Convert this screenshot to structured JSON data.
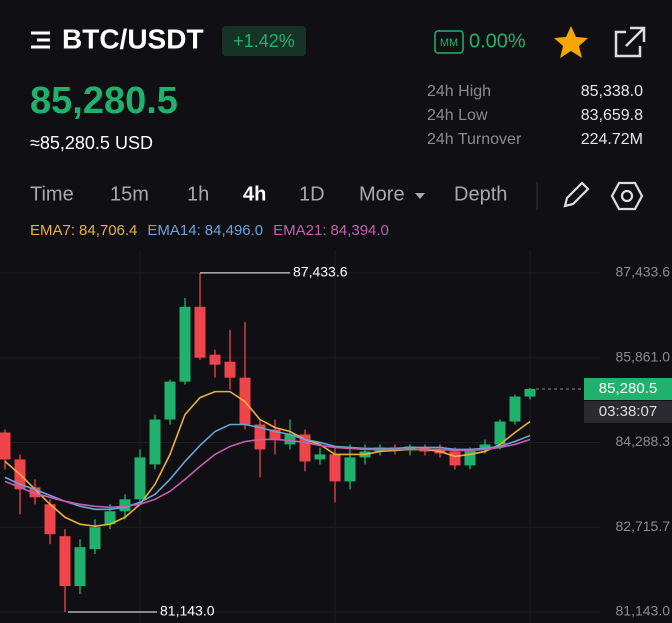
{
  "header": {
    "pair": "BTC/USDT",
    "change": "+1.42%",
    "mm_icon": "MM",
    "mm_value": "0.00%",
    "price": "85,280.5",
    "usd_price": "≈85,280.5 USD",
    "stats": [
      {
        "label": "24h High",
        "value": "85,338.0"
      },
      {
        "label": "24h Low",
        "value": "83,659.8"
      },
      {
        "label": "24h Turnover",
        "value": "224.72M"
      }
    ]
  },
  "tabs": [
    "Time",
    "15m",
    "1h",
    "4h",
    "1D",
    "More",
    "Depth"
  ],
  "chart_data": {
    "type": "candlestick",
    "lines": [
      {
        "name": "EMA7:",
        "current": "84,706.4",
        "color": "#e9b13c",
        "values": [
          83937,
          83697,
          83419,
          83142,
          82901,
          82772,
          82735,
          82772,
          82901,
          83142,
          83512,
          84067,
          84807,
          85121,
          85232,
          85232,
          85047,
          84714,
          84566,
          84492,
          84344,
          84252,
          84067,
          84067,
          84067,
          84122,
          84141,
          84159,
          84159,
          84122,
          84030,
          84067,
          84122,
          84252,
          84474,
          84677
        ]
      },
      {
        "name": "EMA14:",
        "current": "84,496.0",
        "color": "#6aa3d8",
        "values": [
          83641,
          83512,
          83419,
          83308,
          83197,
          83105,
          83049,
          83049,
          83086,
          83179,
          83327,
          83604,
          83937,
          84233,
          84492,
          84622,
          84622,
          84566,
          84492,
          84437,
          84344,
          84289,
          84215,
          84196,
          84178,
          84178,
          84178,
          84196,
          84196,
          84196,
          84159,
          84159,
          84178,
          84215,
          84307,
          84418
        ]
      },
      {
        "name": "EMA21:",
        "current": "84,394.0",
        "color": "#c35fae",
        "values": [
          83567,
          83456,
          83345,
          83271,
          83197,
          83142,
          83105,
          83086,
          83105,
          83142,
          83234,
          83382,
          83604,
          83845,
          84067,
          84215,
          84307,
          84344,
          84344,
          84326,
          84289,
          84233,
          84196,
          84178,
          84159,
          84159,
          84159,
          84159,
          84159,
          84159,
          84141,
          84141,
          84159,
          84196,
          84252,
          84344
        ]
      }
    ],
    "candles": {
      "open": [
        84474,
        83974,
        83456,
        83142,
        82550,
        81625,
        82309,
        82772,
        83012,
        83234,
        83882,
        84714,
        85417,
        86805,
        85917,
        85787,
        85491,
        84622,
        84529,
        84252,
        84437,
        83974,
        84067,
        83567,
        84011,
        84122,
        84196,
        84141,
        84196,
        84159,
        84122,
        83863,
        84159,
        84252,
        84677,
        85140
      ],
      "high": [
        84529,
        84067,
        83604,
        83234,
        82679,
        82494,
        82864,
        83142,
        83327,
        84159,
        84807,
        85454,
        86971,
        87433.6,
        86009,
        86379,
        86527,
        84714,
        84714,
        84714,
        84529,
        84196,
        84196,
        84252,
        84252,
        84252,
        84252,
        84252,
        84252,
        84252,
        84196,
        84196,
        84344,
        84714,
        85177,
        85299
      ],
      "low": [
        83789,
        82957,
        83142,
        82402,
        81143,
        81477,
        82217,
        82679,
        82864,
        83142,
        83789,
        84622,
        85362,
        85824,
        85491,
        85269,
        84529,
        83641,
        84067,
        84159,
        83752,
        83882,
        83179,
        83419,
        83882,
        84048,
        84067,
        84048,
        84048,
        84011,
        83789,
        83789,
        84085,
        84159,
        84622,
        85084
      ],
      "close": [
        83974,
        83419,
        83271,
        82587,
        81625,
        82346,
        82716,
        83012,
        83234,
        84011,
        84714,
        85417,
        86805,
        85861,
        85732,
        85491,
        84622,
        84159,
        84344,
        84437,
        83937,
        84067,
        83567,
        84011,
        84122,
        84196,
        84141,
        84215,
        84122,
        84085,
        83863,
        84159,
        84252,
        84677,
        85140,
        85280.5
      ]
    },
    "up_color": "#20b26c",
    "down_color": "#ef454a",
    "ylim": [
      80939.5,
      87859.1
    ],
    "yticks": [
      {
        "value": 87433.6,
        "label": "87,433.6"
      },
      {
        "value": 85861.0,
        "label": "85,861.0"
      },
      {
        "value": 84288.3,
        "label": "84,288.3"
      },
      {
        "value": 82715.7,
        "label": "82,715.7"
      },
      {
        "value": 81143.0,
        "label": "81,143.0"
      }
    ],
    "high_marker": {
      "value": 87433.6,
      "label": "87,433.6"
    },
    "low_marker": {
      "value": 81143.0,
      "label": "81,143.0"
    },
    "last_price": {
      "value": 85280.5,
      "label": "85,280.5"
    },
    "countdown": "03:38:07"
  }
}
